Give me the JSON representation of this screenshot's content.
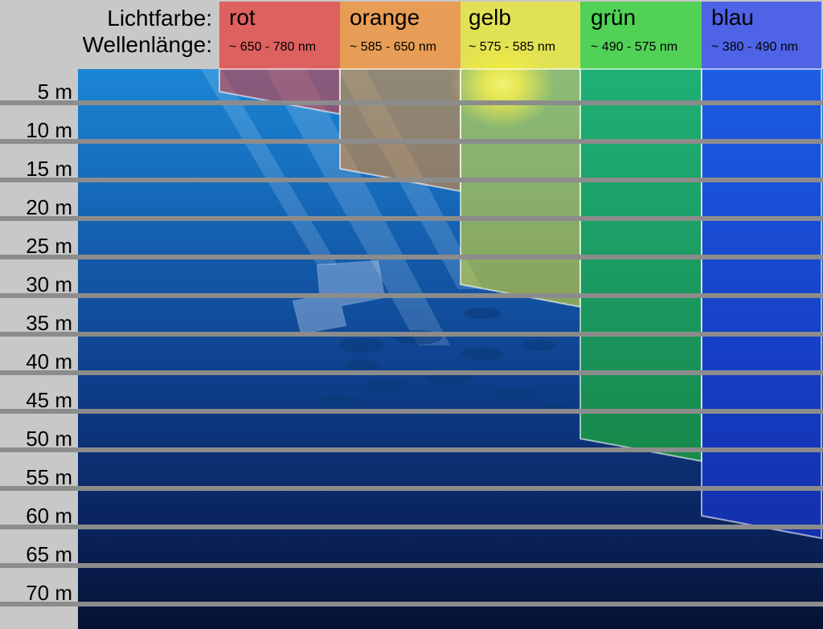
{
  "header": {
    "color_label": "Lichtfarbe:",
    "wavelength_label": "Wellenlänge:"
  },
  "bands": [
    {
      "name": "rot",
      "range": "~ 650 - 780 nm",
      "color": "#e53935",
      "depth_m": 5
    },
    {
      "name": "orange",
      "range": "~ 585 - 650 nm",
      "color": "#f28c2a",
      "depth_m": 15
    },
    {
      "name": "gelb",
      "range": "~ 575 - 585 nm",
      "color": "#eaea2a",
      "depth_m": 30
    },
    {
      "name": "grün",
      "range": "~ 490 - 575 nm",
      "color": "#22d42a",
      "depth_m": 50
    },
    {
      "name": "blau",
      "range": "~ 380 - 490 nm",
      "color": "#1e3cf0",
      "depth_m": 60
    }
  ],
  "depths": [
    "5 m",
    "10 m",
    "15 m",
    "20 m",
    "25 m",
    "30 m",
    "35 m",
    "40 m",
    "45 m",
    "50 m",
    "55 m",
    "60 m",
    "65 m",
    "70 m"
  ]
}
